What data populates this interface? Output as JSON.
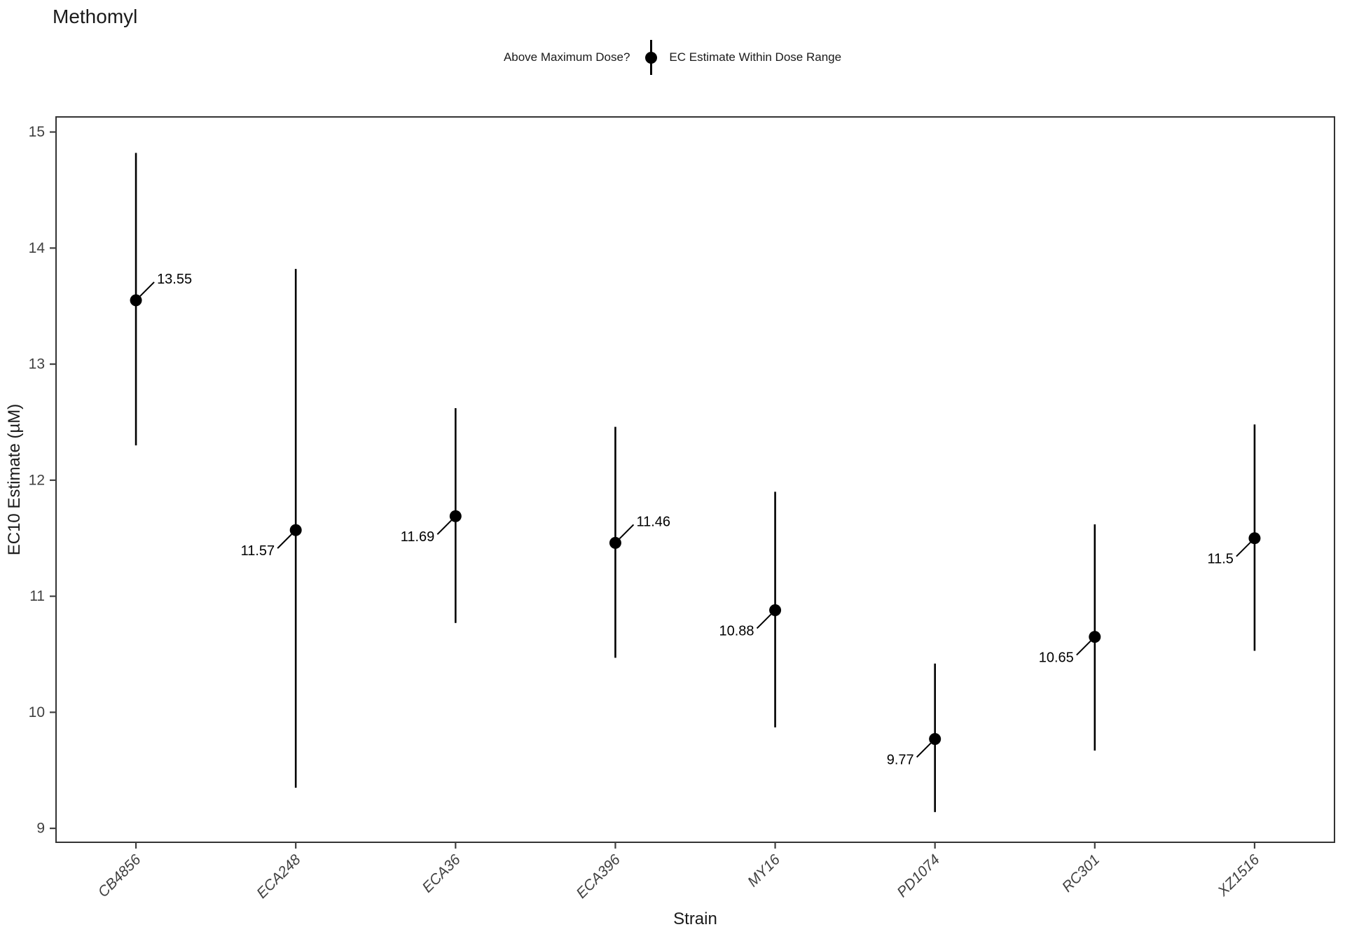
{
  "title": "Methomyl",
  "legend": {
    "title": "Above Maximum Dose?",
    "items": [
      {
        "label": "EC Estimate Within Dose Range",
        "glyph": "pointrange"
      }
    ]
  },
  "chart_data": {
    "type": "pointrange-scatter",
    "title": "Methomyl",
    "xlabel": "Strain",
    "ylabel": "EC10 Estimate (µM)",
    "ylim": [
      8.88,
      15.13
    ],
    "yticks": [
      9,
      10,
      11,
      12,
      13,
      14,
      15
    ],
    "grid": "off",
    "legend_position": "top-center",
    "categories": [
      "CB4856",
      "ECA248",
      "ECA36",
      "ECA396",
      "MY16",
      "PD1074",
      "RC301",
      "XZ1516"
    ],
    "points": [
      {
        "strain": "CB4856",
        "estimate": 13.55,
        "lower": 12.3,
        "upper": 14.82,
        "label": "13.55",
        "label_side": "right"
      },
      {
        "strain": "ECA248",
        "estimate": 11.57,
        "lower": 9.35,
        "upper": 13.82,
        "label": "11.57",
        "label_side": "left"
      },
      {
        "strain": "ECA36",
        "estimate": 11.69,
        "lower": 10.77,
        "upper": 12.62,
        "label": "11.69",
        "label_side": "left"
      },
      {
        "strain": "ECA396",
        "estimate": 11.46,
        "lower": 10.47,
        "upper": 12.46,
        "label": "11.46",
        "label_side": "right"
      },
      {
        "strain": "MY16",
        "estimate": 10.88,
        "lower": 9.87,
        "upper": 11.9,
        "label": "10.88",
        "label_side": "left"
      },
      {
        "strain": "PD1074",
        "estimate": 9.77,
        "lower": 9.14,
        "upper": 10.42,
        "label": "9.77",
        "label_side": "left"
      },
      {
        "strain": "RC301",
        "estimate": 10.65,
        "lower": 9.67,
        "upper": 11.62,
        "label": "10.65",
        "label_side": "left"
      },
      {
        "strain": "XZ1516",
        "estimate": 11.5,
        "lower": 10.53,
        "upper": 12.48,
        "label": "11.5",
        "label_side": "left"
      }
    ],
    "colors": {
      "point": "#000000",
      "errorbar": "#000000",
      "data_label": "#000000",
      "axis_text": "#404040",
      "axis_title": "#1a1a1a",
      "panel_border": "#333333",
      "background": "#ffffff"
    }
  }
}
